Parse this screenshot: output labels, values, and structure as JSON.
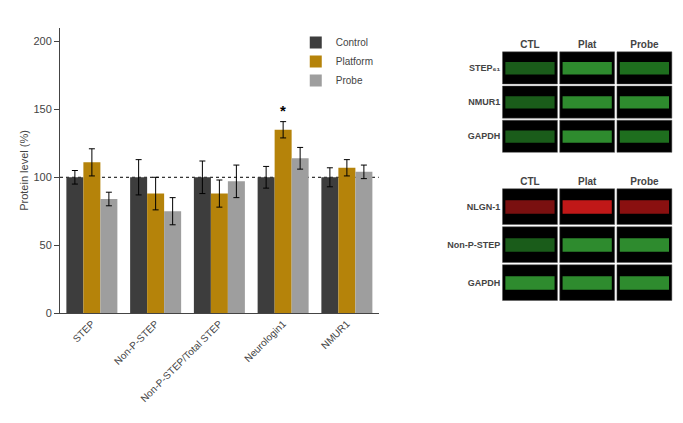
{
  "chart_data": [
    {
      "type": "bar",
      "categories": [
        "STEP",
        "Non-P-STEP",
        "Non-P-STEP/Total STEP",
        "Neurologin1",
        "NMUR1"
      ],
      "series": [
        {
          "name": "Control",
          "color": "#3d3d3d",
          "values": [
            100,
            100,
            100,
            100,
            100
          ],
          "errors": [
            5,
            13,
            12,
            8,
            7
          ]
        },
        {
          "name": "Platform",
          "color": "#b5830a",
          "values": [
            111,
            88,
            88,
            135,
            107
          ],
          "errors": [
            10,
            12,
            10,
            6,
            6
          ]
        },
        {
          "name": "Probe",
          "color": "#9e9e9e",
          "values": [
            84,
            75,
            97,
            114,
            104
          ],
          "errors": [
            5,
            10,
            12,
            8,
            5
          ]
        }
      ],
      "ylabel": "Protein level (%)",
      "ylim": [
        0,
        210
      ],
      "yticks": [
        0,
        50,
        100,
        150,
        200
      ],
      "reference_line": 100,
      "annotations": [
        {
          "text": "*",
          "category": "Neurologin1",
          "series": "Platform"
        }
      ],
      "grid": false,
      "legend": "upper right"
    },
    {
      "type": "blot",
      "categories": [
        "CTL",
        "Plat",
        "Probe"
      ],
      "series": [
        {
          "name": "STEP₆₁",
          "colors": [
            "#1a5c1a",
            "#2e8b2e",
            "#1e6e1e"
          ]
        },
        {
          "name": "NMUR1",
          "colors": [
            "#1a5c1a",
            "#2e8b2e",
            "#2e8b2e"
          ]
        },
        {
          "name": "GAPDH",
          "colors": [
            "#1a5c1a",
            "#2e8b2e",
            "#1e6e1e"
          ]
        }
      ]
    },
    {
      "type": "blot",
      "categories": [
        "CTL",
        "Plat",
        "Probe"
      ],
      "series": [
        {
          "name": "NLGN-1",
          "colors": [
            "#7a1010",
            "#c01818",
            "#8a1010"
          ]
        },
        {
          "name": "Non-P-STEP",
          "colors": [
            "#1a5c1a",
            "#2e8b2e",
            "#2e8b2e"
          ]
        },
        {
          "name": "GAPDH",
          "colors": [
            "#2e8b2e",
            "#2e8b2e",
            "#2e8b2e"
          ]
        }
      ]
    }
  ]
}
